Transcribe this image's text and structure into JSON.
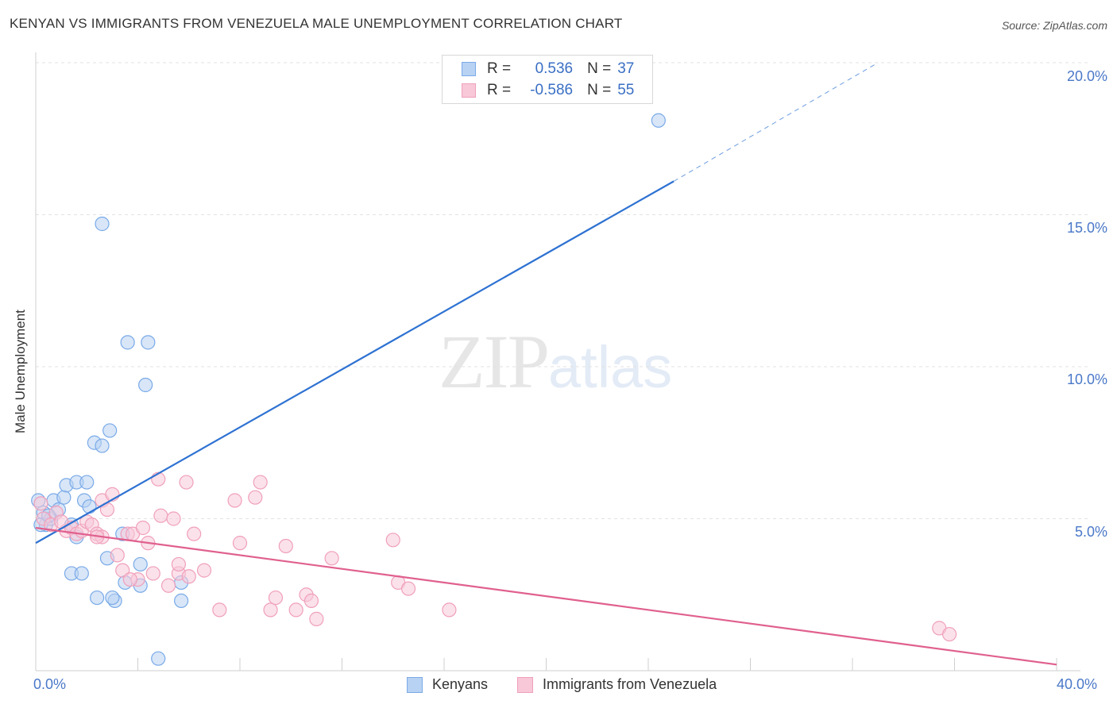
{
  "chart_data": {
    "type": "scatter",
    "title": "KENYAN VS IMMIGRANTS FROM VENEZUELA MALE UNEMPLOYMENT CORRELATION CHART",
    "source": "Source: ZipAtlas.com",
    "xlabel": "",
    "ylabel": "Male Unemployment",
    "xlim": [
      0,
      40
    ],
    "ylim": [
      0,
      20
    ],
    "x_tick_labels": {
      "left": "0.0%",
      "right": "40.0%"
    },
    "y_ticks": [
      {
        "value": 5,
        "label": "5.0%"
      },
      {
        "value": 10,
        "label": "10.0%"
      },
      {
        "value": 15,
        "label": "15.0%"
      },
      {
        "value": 20,
        "label": "20.0%"
      }
    ],
    "watermark": {
      "zip": "ZIP",
      "atlas": "atlas"
    },
    "legend_stats": [
      {
        "r_label": "R =",
        "r_value": "0.536",
        "n_label": "N =",
        "n_value": "37"
      },
      {
        "r_label": "R =",
        "r_value": "-0.586",
        "n_label": "N =",
        "n_value": "55"
      }
    ],
    "series": [
      {
        "name": "Kenyans",
        "color": "#7aaae8",
        "fill": "#b8d2f3",
        "line_color": "#2e72d2",
        "trend": {
          "x0": 0,
          "y0": 4.2,
          "x1": 25,
          "y1": 16.1,
          "dash_to_x": 33,
          "dash_to_y": 20.0
        },
        "points": [
          [
            0.1,
            5.6
          ],
          [
            0.3,
            5.2
          ],
          [
            0.4,
            4.8
          ],
          [
            0.6,
            5.0
          ],
          [
            0.7,
            5.6
          ],
          [
            0.9,
            5.3
          ],
          [
            1.1,
            5.7
          ],
          [
            1.2,
            6.1
          ],
          [
            1.4,
            4.8
          ],
          [
            1.6,
            4.4
          ],
          [
            1.6,
            6.2
          ],
          [
            2.0,
            6.2
          ],
          [
            1.9,
            5.6
          ],
          [
            2.1,
            5.4
          ],
          [
            2.3,
            7.5
          ],
          [
            2.6,
            14.7
          ],
          [
            2.6,
            7.4
          ],
          [
            2.9,
            7.9
          ],
          [
            2.8,
            3.7
          ],
          [
            3.6,
            10.8
          ],
          [
            3.4,
            4.5
          ],
          [
            4.4,
            10.8
          ],
          [
            4.3,
            9.4
          ],
          [
            1.4,
            3.2
          ],
          [
            1.8,
            3.2
          ],
          [
            2.4,
            2.4
          ],
          [
            3.1,
            2.3
          ],
          [
            3.0,
            2.4
          ],
          [
            3.5,
            2.9
          ],
          [
            4.1,
            3.5
          ],
          [
            4.1,
            2.8
          ],
          [
            5.7,
            2.9
          ],
          [
            5.7,
            2.3
          ],
          [
            4.8,
            0.4
          ],
          [
            24.4,
            18.1
          ],
          [
            0.2,
            4.8
          ],
          [
            0.5,
            5.1
          ]
        ]
      },
      {
        "name": "Immigrants from Venezuela",
        "color": "#f0a0ba",
        "fill": "#f8c8d8",
        "line_color": "#e0608e",
        "trend": {
          "x0": 0,
          "y0": 4.7,
          "x1": 40,
          "y1": 0.2
        },
        "points": [
          [
            0.3,
            5.0
          ],
          [
            0.6,
            4.8
          ],
          [
            0.8,
            5.2
          ],
          [
            1.2,
            4.6
          ],
          [
            1.4,
            4.7
          ],
          [
            1.6,
            4.5
          ],
          [
            1.8,
            4.6
          ],
          [
            2.0,
            4.9
          ],
          [
            2.2,
            4.8
          ],
          [
            2.4,
            4.5
          ],
          [
            2.6,
            4.4
          ],
          [
            2.6,
            5.6
          ],
          [
            2.8,
            5.3
          ],
          [
            3.0,
            5.8
          ],
          [
            3.2,
            3.8
          ],
          [
            3.4,
            3.3
          ],
          [
            3.6,
            4.5
          ],
          [
            3.8,
            4.5
          ],
          [
            4.0,
            3.0
          ],
          [
            4.2,
            4.7
          ],
          [
            4.4,
            4.2
          ],
          [
            4.6,
            3.2
          ],
          [
            4.8,
            6.3
          ],
          [
            4.9,
            5.1
          ],
          [
            5.2,
            2.8
          ],
          [
            5.4,
            5.0
          ],
          [
            5.6,
            3.2
          ],
          [
            5.9,
            6.2
          ],
          [
            6.0,
            3.1
          ],
          [
            6.2,
            4.5
          ],
          [
            6.6,
            3.3
          ],
          [
            7.2,
            2.0
          ],
          [
            7.8,
            5.6
          ],
          [
            8.0,
            4.2
          ],
          [
            8.6,
            5.7
          ],
          [
            8.8,
            6.2
          ],
          [
            9.2,
            2.0
          ],
          [
            9.4,
            2.4
          ],
          [
            9.8,
            4.1
          ],
          [
            10.2,
            2.0
          ],
          [
            10.6,
            2.5
          ],
          [
            10.8,
            2.3
          ],
          [
            11.0,
            1.7
          ],
          [
            11.6,
            3.7
          ],
          [
            14.0,
            4.3
          ],
          [
            14.2,
            2.9
          ],
          [
            14.6,
            2.7
          ],
          [
            16.2,
            2.0
          ],
          [
            35.4,
            1.4
          ],
          [
            35.8,
            1.2
          ],
          [
            0.2,
            5.5
          ],
          [
            1.0,
            4.9
          ],
          [
            5.6,
            3.5
          ],
          [
            2.4,
            4.4
          ],
          [
            3.7,
            3.0
          ]
        ]
      }
    ]
  }
}
